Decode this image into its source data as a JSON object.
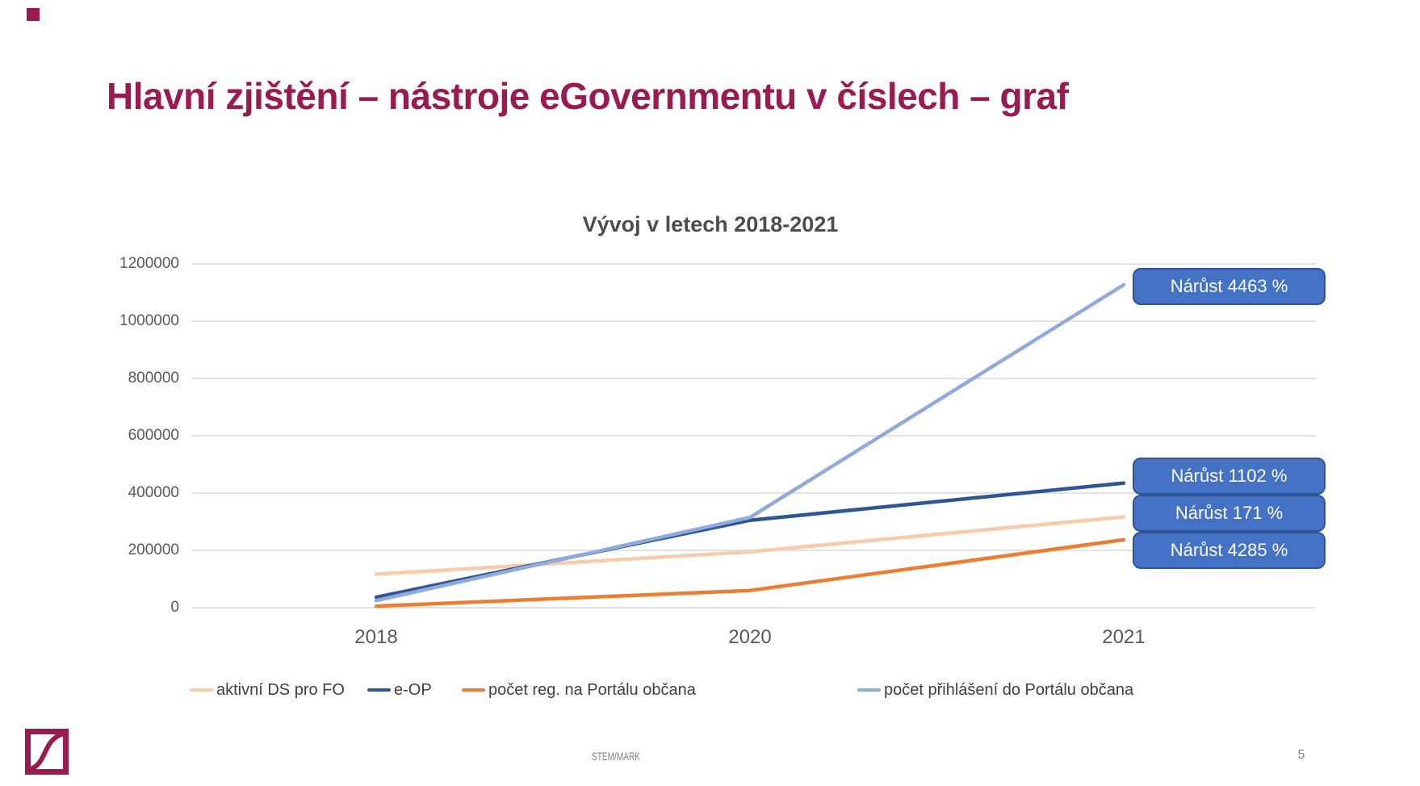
{
  "slide": {
    "title": "Hlavní zjištění – nástroje eGovernmentu v číslech – graf",
    "footer": "STEM/MARK",
    "page_number": "5"
  },
  "colors": {
    "brand_maroon": "#9A1B50",
    "badge_fill": "#4472C4",
    "badge_border": "#2E5395",
    "gridline": "#D9D9D9",
    "axis_text": "#595959",
    "title_text": "#4d4d4d"
  },
  "chart_data": {
    "type": "line",
    "title": "Vývoj v letech 2018-2021",
    "categories": [
      "2018",
      "2020",
      "2021"
    ],
    "series": [
      {
        "name": "aktivní DS pro FO",
        "color": "#F8CBAD",
        "values": [
          117000,
          195000,
          317000
        ]
      },
      {
        "name": "e-OP",
        "color": "#2F5597",
        "values": [
          36200,
          305000,
          435000
        ]
      },
      {
        "name": "počet reg. na Portálu občana",
        "color": "#ED7D31",
        "values": [
          5400,
          60000,
          236800
        ]
      },
      {
        "name": "počet přihlášení do Portálu občana",
        "color": "#8FAADC",
        "values": [
          24700,
          315000,
          1127000
        ]
      }
    ],
    "ylim": [
      0,
      1200000
    ],
    "ytick_step": 200000,
    "yticks": [
      "1200000",
      "1000000",
      "800000",
      "600000",
      "400000",
      "200000",
      "0"
    ],
    "grid": true,
    "legend_position": "bottom",
    "annotations": [
      {
        "label": "Nárůst 4463 %",
        "series": "počet přihlášení do Portálu občana"
      },
      {
        "label": "Nárůst 1102 %",
        "series": "e-OP"
      },
      {
        "label": "Nárůst 171 %",
        "series": "aktivní DS pro FO"
      },
      {
        "label": "Nárůst 4285 %",
        "series": "počet reg. na Portálu občana"
      }
    ]
  }
}
